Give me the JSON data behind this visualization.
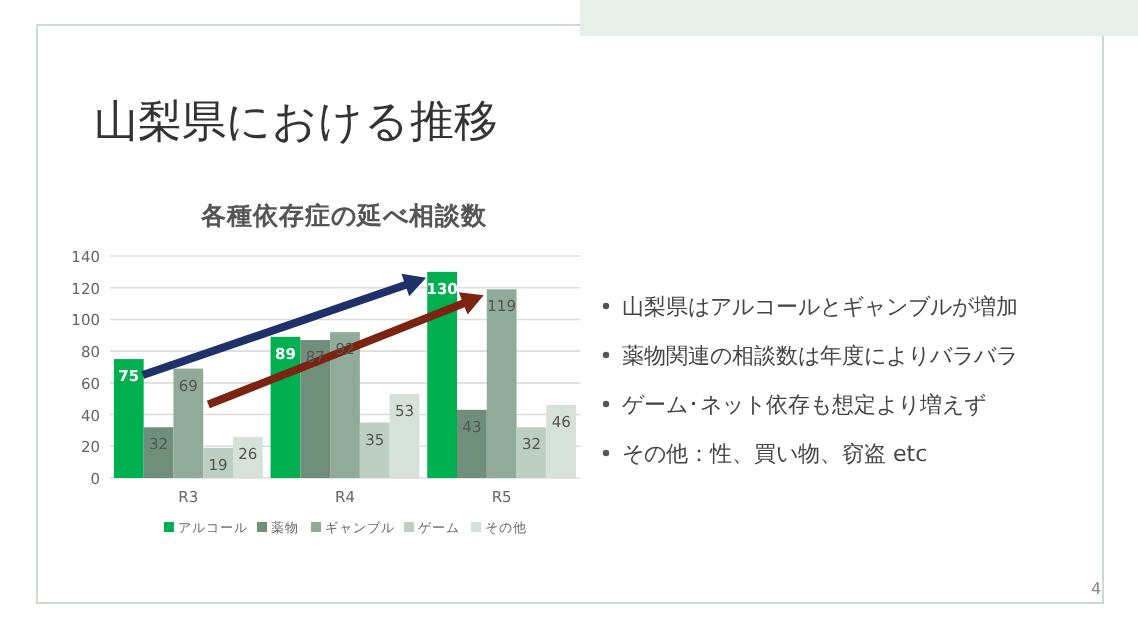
{
  "chart_data": {
    "type": "bar",
    "title": "各種依存症の延べ相談数",
    "categories": [
      "R3",
      "R4",
      "R5"
    ],
    "series": [
      {
        "name": "アルコール",
        "color": "#00b050",
        "values": [
          75,
          89,
          130
        ]
      },
      {
        "name": "薬物",
        "color": "#6f8f7b",
        "values": [
          32,
          87,
          43
        ]
      },
      {
        "name": "ギャンブル",
        "color": "#90ab99",
        "values": [
          69,
          92,
          119
        ]
      },
      {
        "name": "ゲーム",
        "color": "#bccfc2",
        "values": [
          19,
          35,
          32
        ]
      },
      {
        "name": "その他",
        "color": "#d6e1d9",
        "values": [
          26,
          53,
          46
        ]
      }
    ],
    "ylim": [
      0,
      140
    ],
    "yticks": [
      0,
      20,
      40,
      60,
      80,
      100,
      120,
      140
    ],
    "grid": "y",
    "legend": "bottom",
    "data_labels": true,
    "annotations": [
      "山梨県における推移",
      "山梨県はアルコールとギャンブルが増加",
      "薬物関連の相談数は年度によりバラバラ",
      "ゲーム･ネット依存も想定より増えず",
      "その他：性、買い物、窃盗 etc",
      "4"
    ]
  }
}
